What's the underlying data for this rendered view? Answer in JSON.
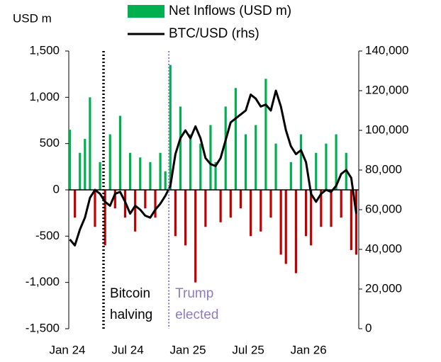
{
  "chart_data": {
    "type": "bar_line",
    "y_label": "USD m",
    "x": [
      0.25,
      0.75,
      1.25,
      1.75,
      2.25,
      2.75,
      3.25,
      3.75,
      4.25,
      4.75,
      5.25,
      5.75,
      6.25,
      6.75,
      7.25,
      7.75,
      8.25,
      8.75,
      9.25,
      9.75,
      10.25,
      10.75,
      11.25,
      11.75,
      12.25,
      12.75,
      13.25,
      13.75,
      14.25,
      14.75,
      15.25,
      15.75,
      16.25,
      16.75,
      17.25,
      17.75,
      18.25,
      18.75,
      19.25,
      19.75,
      20.25,
      20.75,
      21.25,
      21.75,
      22.25,
      22.75,
      23.25,
      23.75,
      24.25,
      24.75,
      25.25,
      25.75,
      26.25,
      26.75,
      27.25,
      27.75,
      28.25,
      28.75
    ],
    "series": [
      {
        "name": "Net Inflows (USD m)",
        "type": "bar",
        "color": "#00b050",
        "negative_color": "#c00000",
        "values": [
          650,
          -300,
          400,
          550,
          1000,
          -400,
          300,
          -600,
          600,
          -200,
          800,
          -300,
          400,
          -450,
          350,
          -200,
          300,
          -300,
          400,
          200,
          1350,
          -500,
          900,
          -600,
          600,
          -1000,
          500,
          -400,
          700,
          300,
          -350,
          900,
          -300,
          1100,
          -200,
          600,
          -500,
          700,
          -450,
          1200,
          -300,
          500,
          -700,
          -800,
          300,
          -900,
          600,
          -500,
          -600,
          400,
          -400,
          500,
          -400,
          600,
          -300,
          400,
          -650,
          -700
        ]
      },
      {
        "name": "BTC/USD (rhs)",
        "type": "line",
        "axis": "y2",
        "color": "#000000",
        "values": [
          45000,
          42000,
          50000,
          56000,
          66000,
          70000,
          68000,
          64000,
          62000,
          68000,
          69000,
          64000,
          58000,
          62000,
          60000,
          57000,
          56000,
          60000,
          63000,
          67000,
          72000,
          88000,
          96000,
          100000,
          96000,
          102000,
          96000,
          86000,
          83000,
          82000,
          86000,
          95000,
          104000,
          106000,
          108000,
          110000,
          118000,
          116000,
          112000,
          113000,
          110000,
          120000,
          112000,
          100000,
          92000,
          88000,
          90000,
          84000,
          68000,
          64000,
          68000,
          70000,
          69000,
          72000,
          78000,
          80000,
          76000,
          58000
        ]
      }
    ],
    "xlim": [
      0,
      29
    ],
    "xticks": [
      {
        "value": 0,
        "label": "Jan 24"
      },
      {
        "value": 6,
        "label": "Jul 24"
      },
      {
        "value": 12,
        "label": "Jan 25"
      },
      {
        "value": 18,
        "label": "Jul 25"
      },
      {
        "value": 24,
        "label": "Jan 26"
      }
    ],
    "ylim": [
      -1500,
      1500
    ],
    "yticks": [
      {
        "value": -1500,
        "label": "-1,500"
      },
      {
        "value": -1000,
        "label": "-1,000"
      },
      -500,
      0,
      500,
      {
        "value": 1000,
        "label": "1,000"
      },
      {
        "value": 1500,
        "label": "1,500"
      }
    ],
    "y2lim": [
      0,
      140000
    ],
    "y2ticks": [
      0,
      {
        "value": 20000,
        "label": "20,000"
      },
      {
        "value": 40000,
        "label": "40,000"
      },
      {
        "value": 60000,
        "label": "60,000"
      },
      {
        "value": 80000,
        "label": "80,000"
      },
      {
        "value": 100000,
        "label": "100,000"
      },
      {
        "value": 120000,
        "label": "120,000"
      },
      {
        "value": 140000,
        "label": "140,000"
      }
    ],
    "annotations": [
      {
        "lines": [
          "Bitcoin",
          "halving"
        ],
        "x": 3.6,
        "color": "#000000"
      },
      {
        "lines": [
          "Trump",
          "elected"
        ],
        "x": 10.1,
        "color": "#8e7cc3"
      }
    ]
  }
}
